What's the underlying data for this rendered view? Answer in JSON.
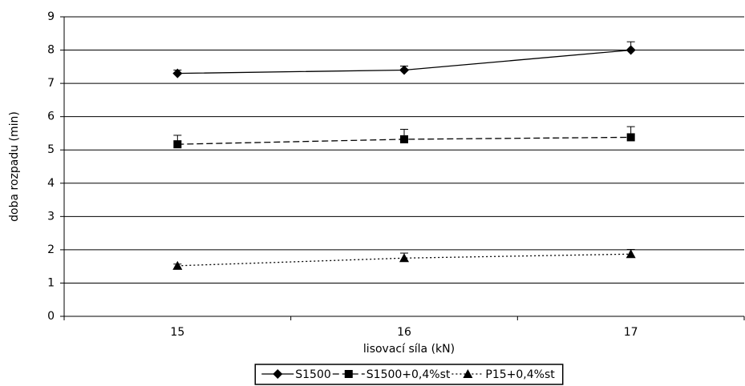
{
  "chart_data": {
    "type": "line",
    "x_label": "lisovací síla (kN)",
    "y_label": "doba rozpadu (min)",
    "categories": [
      "15",
      "16",
      "17"
    ],
    "series": [
      {
        "name": "S1500",
        "color": "#000000",
        "dash": "solid",
        "marker": "diamond",
        "values": [
          7.3,
          7.4,
          8.0
        ],
        "errors": [
          0.1,
          0.12,
          0.25
        ]
      },
      {
        "name": "S1500+0,4%st",
        "color": "#000000",
        "dash": "dashed",
        "marker": "square",
        "values": [
          5.17,
          5.32,
          5.38
        ],
        "errors": [
          0.27,
          0.3,
          0.32
        ]
      },
      {
        "name": "P15+0,4%st",
        "color": "#000000",
        "dash": "dotted",
        "marker": "triangle",
        "values": [
          1.52,
          1.75,
          1.87
        ],
        "errors": [
          0.05,
          0.15,
          0.14
        ]
      }
    ],
    "ylim": [
      0,
      9
    ],
    "yticks": [
      0,
      1,
      2,
      3,
      4,
      5,
      6,
      7,
      8,
      9
    ],
    "grid": true,
    "legend": "bottom"
  }
}
